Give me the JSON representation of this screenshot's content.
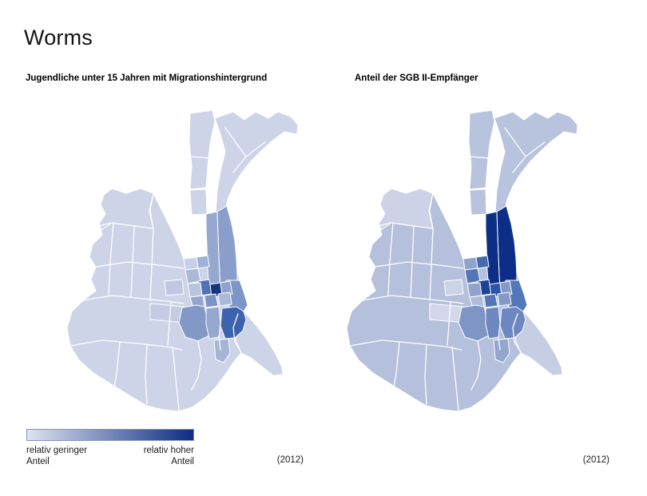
{
  "page": {
    "title": "Worms"
  },
  "maps": [
    {
      "id": "migration",
      "title": "Jugendliche unter 15 Jahren mit Migrationshintergrund",
      "year_label": "(2012)"
    },
    {
      "id": "sgb2",
      "title": "Anteil der SGB II-Empfänger",
      "year_label": "(2012)"
    }
  ],
  "legend": {
    "low_label_line1": "relativ geringer",
    "low_label_line2": "Anteil",
    "high_label_line1": "relativ hoher",
    "high_label_line2": "Anteil",
    "gradient_start": "#dde3f0",
    "gradient_end": "#0d2d84",
    "border_color": "#8494bf"
  },
  "district_colors": {
    "migration": {
      "body": "#cdd4e7",
      "neck": "#cdd4e7",
      "neckLower": "#cdd4e7",
      "wing": "#cdd4e7",
      "nw": "#cdd4e7",
      "coast": "#cdd4e7",
      "p1": "#c3cce2",
      "p2": "#bec9e1",
      "stripWest": "#96a8d0",
      "stripEast": "#8a9ecb",
      "e1": "#95a7cf",
      "e3": "#7e96c6",
      "tailPatch": "#a5b4d7",
      "c0": "#c7d0e4",
      "c1": "#9fb1d6",
      "c2": "#aab9da",
      "c3": "#15357f",
      "c3b": "#8fa2cb",
      "c4": "#4f72b5",
      "c5": "#b9c4de",
      "c6": "#93a6ce",
      "c7": "#7b93c5",
      "c8": "#aab8d9",
      "c9": "#8298c6",
      "c10": "#3c63ae"
    },
    "sgb2": {
      "body": "#b5c0dc",
      "neck": "#b8c3de",
      "neckLower": "#b8c3de",
      "wing": "#b8c3de",
      "nw": "#ccd3e6",
      "coast": "#c6cee4",
      "p1": "#d2d8ea",
      "p2": "#ccd3e6",
      "stripWest": "#0d2e86",
      "stripEast": "#0d2e86",
      "e1": "#6d87c0",
      "e3": "#5377b8",
      "tailPatch": "#93a6ce",
      "c0": "#8fa3cc",
      "c1": "#4568ae",
      "c2": "#5376b8",
      "c3": "#2d55a5",
      "c3b": "#8599c7",
      "c4": "#1d4397",
      "c5": "#8fa3cc",
      "c6": "#b0bcd9",
      "c7": "#5376b8",
      "c8": "#8599c7",
      "c9": "#7e95c5",
      "c10": "#6d87c0"
    }
  },
  "chart_data": [
    {
      "type": "heatmap",
      "title": "Jugendliche unter 15 Jahren mit Migrationshintergrund",
      "year": "(2012)",
      "scale": {
        "low": "relativ geringer Anteil",
        "high": "relativ hoher Anteil"
      },
      "legend_position": "bottom-left",
      "regions": {
        "body": 0.08,
        "neck": 0.08,
        "neckLower": 0.08,
        "wing": 0.08,
        "nw": 0.08,
        "coast": 0.08,
        "p1": 0.15,
        "p2": 0.18,
        "stripWest": 0.45,
        "stripEast": 0.52,
        "e1": 0.45,
        "e3": 0.55,
        "tailPatch": 0.35,
        "c0": 0.12,
        "c1": 0.35,
        "c2": 0.3,
        "c3": 0.97,
        "c3b": 0.5,
        "c4": 0.75,
        "c5": 0.2,
        "c6": 0.4,
        "c7": 0.55,
        "c8": 0.32,
        "c9": 0.5,
        "c10": 0.85
      }
    },
    {
      "type": "heatmap",
      "title": "Anteil der SGB II-Empfänger",
      "year": "(2012)",
      "scale": {
        "low": "relativ geringer Anteil",
        "high": "relativ hoher Anteil"
      },
      "legend_position": "bottom-left",
      "regions": {
        "body": 0.28,
        "neck": 0.26,
        "neckLower": 0.26,
        "wing": 0.26,
        "nw": 0.1,
        "coast": 0.18,
        "p1": 0.12,
        "p2": 0.1,
        "stripWest": 1.0,
        "stripEast": 1.0,
        "e1": 0.62,
        "e3": 0.72,
        "tailPatch": 0.42,
        "c0": 0.45,
        "c1": 0.78,
        "c2": 0.7,
        "c3": 0.85,
        "c3b": 0.55,
        "c4": 0.92,
        "c5": 0.45,
        "c6": 0.32,
        "c7": 0.7,
        "c8": 0.55,
        "c9": 0.5,
        "c10": 0.62
      }
    }
  ]
}
